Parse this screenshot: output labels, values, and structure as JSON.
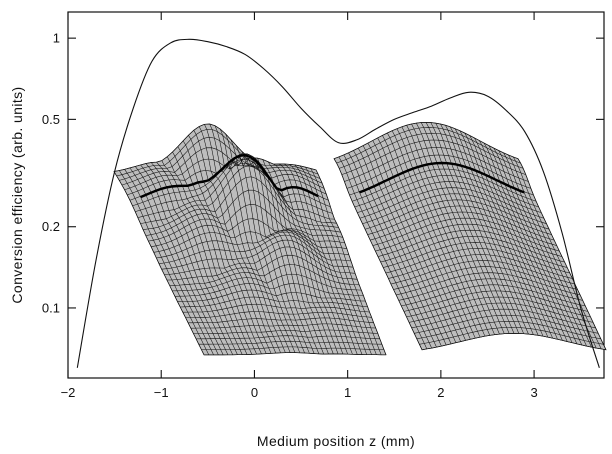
{
  "chart_data": {
    "type": "line",
    "title": "",
    "xlabel": "Medium position z (mm)",
    "ylabel": "Conversion efficiency (arb. units)",
    "xlim": [
      -2,
      3.75
    ],
    "ylim": [
      0.055,
      1.25
    ],
    "yscale": "log",
    "xticks": [
      -2,
      -1,
      0,
      1,
      2,
      3
    ],
    "xtick_labels": [
      "−2",
      "−1",
      "0",
      "1",
      "2",
      "3"
    ],
    "yticks": [
      0.1,
      0.2,
      0.5,
      1
    ],
    "ytick_labels": [
      "0.1",
      "0.2",
      "0.5",
      "1"
    ],
    "grid": false,
    "series": [
      {
        "x": [
          -1.9,
          -1.7,
          -1.5,
          -1.3,
          -1.1,
          -0.9,
          -0.7,
          -0.5,
          -0.3,
          -0.1,
          0.1,
          0.3,
          0.5,
          0.7,
          0.9,
          1.1,
          1.3,
          1.5,
          1.7,
          1.9,
          2.1,
          2.3,
          2.5,
          2.7,
          2.9,
          3.1,
          3.3,
          3.5,
          3.7
        ],
        "values": [
          0.06,
          0.15,
          0.32,
          0.55,
          0.82,
          0.96,
          0.99,
          0.97,
          0.93,
          0.87,
          0.77,
          0.66,
          0.55,
          0.47,
          0.41,
          0.42,
          0.46,
          0.5,
          0.53,
          0.56,
          0.6,
          0.63,
          0.61,
          0.54,
          0.45,
          0.32,
          0.19,
          0.1,
          0.06
        ]
      }
    ]
  },
  "insets": [
    {
      "name": "measured-beam-profile-mesh",
      "style": "wireframe surface plot"
    },
    {
      "name": "calculated-beam-profile-mesh",
      "style": "wireframe surface plot"
    }
  ]
}
